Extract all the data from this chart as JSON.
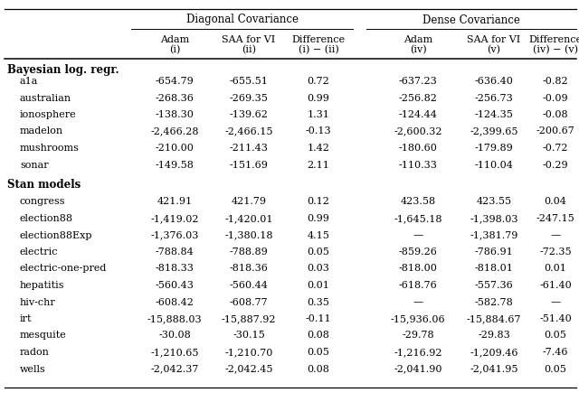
{
  "header_group1": "Diagonal Covariance",
  "header_group2": "Dense Covariance",
  "col_headers_line1": [
    "Adam",
    "SAA for VI",
    "Difference",
    "Adam",
    "SAA for VI",
    "Difference"
  ],
  "col_headers_line2": [
    "(i)",
    "(ii)",
    "(i) − (ii)",
    "(iv)",
    "(v)",
    "(iv) − (v)"
  ],
  "section1_label": "Bayesian log. regr.",
  "section2_label": "Stan models",
  "rows": [
    [
      "a1a",
      "-654.79",
      "-655.51",
      "0.72",
      "-637.23",
      "-636.40",
      "-0.82"
    ],
    [
      "australian",
      "-268.36",
      "-269.35",
      "0.99",
      "-256.82",
      "-256.73",
      "-0.09"
    ],
    [
      "ionosphere",
      "-138.30",
      "-139.62",
      "1.31",
      "-124.44",
      "-124.35",
      "-0.08"
    ],
    [
      "madelon",
      "-2,466.28",
      "-2,466.15",
      "-0.13",
      "-2,600.32",
      "-2,399.65",
      "-200.67"
    ],
    [
      "mushrooms",
      "-210.00",
      "-211.43",
      "1.42",
      "-180.60",
      "-179.89",
      "-0.72"
    ],
    [
      "sonar",
      "-149.58",
      "-151.69",
      "2.11",
      "-110.33",
      "-110.04",
      "-0.29"
    ],
    [
      "congress",
      "421.91",
      "421.79",
      "0.12",
      "423.58",
      "423.55",
      "0.04"
    ],
    [
      "election88",
      "-1,419.02",
      "-1,420.01",
      "0.99",
      "-1,645.18",
      "-1,398.03",
      "-247.15"
    ],
    [
      "election88Exp",
      "-1,376.03",
      "-1,380.18",
      "4.15",
      "—",
      "-1,381.79",
      "—"
    ],
    [
      "electric",
      "-788.84",
      "-788.89",
      "0.05",
      "-859.26",
      "-786.91",
      "-72.35"
    ],
    [
      "electric-one-pred",
      "-818.33",
      "-818.36",
      "0.03",
      "-818.00",
      "-818.01",
      "0.01"
    ],
    [
      "hepatitis",
      "-560.43",
      "-560.44",
      "0.01",
      "-618.76",
      "-557.36",
      "-61.40"
    ],
    [
      "hiv-chr",
      "-608.42",
      "-608.77",
      "0.35",
      "—",
      "-582.78",
      "—"
    ],
    [
      "irt",
      "-15,888.03",
      "-15,887.92",
      "-0.11",
      "-15,936.06",
      "-15,884.67",
      "-51.40"
    ],
    [
      "mesquite",
      "-30.08",
      "-30.15",
      "0.08",
      "-29.78",
      "-29.83",
      "0.05"
    ],
    [
      "radon",
      "-1,210.65",
      "-1,210.70",
      "0.05",
      "-1,216.92",
      "-1,209.46",
      "-7.46"
    ],
    [
      "wells",
      "-2,042.37",
      "-2,042.45",
      "0.08",
      "-2,041.90",
      "-2,041.95",
      "0.05"
    ]
  ],
  "section1_rows": 6,
  "background_color": "#ffffff",
  "font_size": 8.0,
  "header_font_size": 8.5
}
